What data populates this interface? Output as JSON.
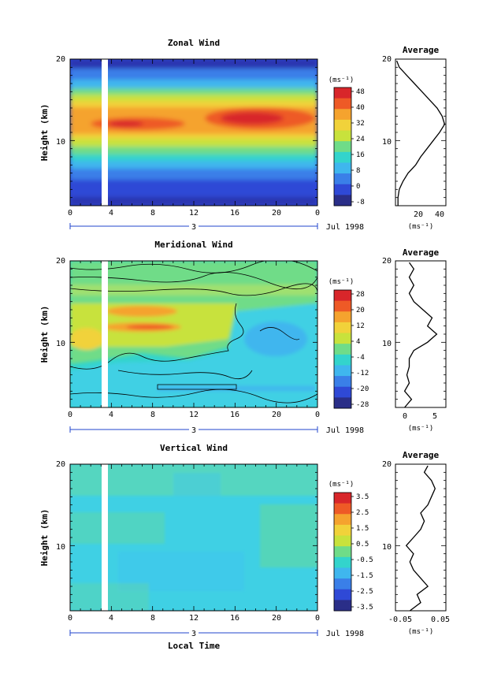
{
  "panels": [
    {
      "title": "Zonal Wind",
      "ylabel": "Height (km)",
      "yticks": [
        "20",
        "10"
      ],
      "xticks": [
        "0",
        "4",
        "8",
        "12",
        "16",
        "20",
        "0"
      ],
      "day_label": "3",
      "date_label": "Jul 1998",
      "cb_title": "(ms⁻¹)",
      "cb_labels": [
        "48",
        "40",
        "32",
        "24",
        "16",
        "8",
        "0",
        "-8"
      ],
      "avg_title": "Average",
      "avg_yticks": [
        "20",
        "10"
      ],
      "avg_xticks": [
        "20",
        "40"
      ],
      "avg_unit": "(ms⁻¹)",
      "gap_x": [
        3.0,
        3.5
      ]
    },
    {
      "title": "Meridional Wind",
      "ylabel": "Height (km)",
      "yticks": [
        "20",
        "10"
      ],
      "xticks": [
        "0",
        "4",
        "8",
        "12",
        "16",
        "20",
        "0"
      ],
      "day_label": "3",
      "date_label": "Jul 1998",
      "cb_title": "(ms⁻¹)",
      "cb_labels": [
        "28",
        "20",
        "12",
        "4",
        "-4",
        "-12",
        "-20",
        "-28"
      ],
      "avg_title": "Average",
      "avg_yticks": [
        "20",
        "10"
      ],
      "avg_xticks": [
        "0",
        "5"
      ],
      "avg_unit": "(ms⁻¹)",
      "gap_x": [
        3.0,
        3.5
      ]
    },
    {
      "title": "Vertical Wind",
      "ylabel": "Height (km)",
      "yticks": [
        "20",
        "10"
      ],
      "xticks": [
        "0",
        "4",
        "8",
        "12",
        "16",
        "20",
        "0"
      ],
      "day_label": "3",
      "date_label": "Jul 1998",
      "cb_title": "(ms⁻¹)",
      "cb_labels": [
        "3.5",
        "2.5",
        "1.5",
        "0.5",
        "-0.5",
        "-1.5",
        "-2.5",
        "-3.5"
      ],
      "avg_title": "Average",
      "avg_yticks": [
        "20",
        "10"
      ],
      "avg_xticks": [
        "-0.05",
        "0.05"
      ],
      "avg_unit": "(ms⁻¹)",
      "gap_x": [
        3.0,
        3.5
      ],
      "xlabel": "Local Time"
    }
  ],
  "chart_data": [
    {
      "type": "heatmap",
      "title": "Zonal Wind",
      "xlabel": "",
      "ylabel": "Height (km)",
      "xlim": [
        0,
        24
      ],
      "ylim": [
        2,
        20
      ],
      "clim": [
        -8,
        48
      ],
      "levels": [
        -8,
        0,
        8,
        16,
        24,
        32,
        40,
        48
      ],
      "colors": [
        "#2a2e88",
        "#2f49d6",
        "#3a7fe8",
        "#3fb6ee",
        "#33d4cc",
        "#6fdc88",
        "#c8e23c",
        "#f1d23a",
        "#f5a32e",
        "#ee5a26",
        "#d8262a"
      ],
      "profile": {
        "height": [
          2,
          3,
          4,
          5,
          6,
          7,
          8,
          9,
          10,
          11,
          12,
          13,
          14,
          15,
          16,
          17,
          18,
          19,
          19.8
        ],
        "value": [
          7,
          7,
          8,
          11,
          15,
          21,
          25,
          30,
          35,
          40,
          44,
          42,
          38,
          32,
          26,
          20,
          14,
          8,
          6
        ]
      }
    },
    {
      "type": "heatmap",
      "title": "Meridional Wind",
      "xlabel": "",
      "ylabel": "Height (km)",
      "xlim": [
        0,
        24
      ],
      "ylim": [
        2,
        20
      ],
      "clim": [
        -28,
        28
      ],
      "levels": [
        -28,
        -20,
        -12,
        -4,
        4,
        12,
        20,
        28
      ],
      "colors": [
        "#2a2e88",
        "#2f49d6",
        "#3a7fe8",
        "#3fb6ee",
        "#33d4cc",
        "#6fdc88",
        "#c8e23c",
        "#f1d23a",
        "#f5a32e",
        "#ee5a26",
        "#d8262a"
      ],
      "profile": {
        "height": [
          2,
          3,
          4,
          5,
          6,
          7,
          8,
          9,
          10,
          11,
          12,
          13,
          14,
          15,
          16,
          17,
          18,
          19,
          19.8
        ],
        "value": [
          -1,
          0.5,
          -1,
          0,
          -0.5,
          0,
          0,
          1,
          4,
          6,
          4,
          5,
          3,
          1,
          0,
          1,
          0,
          1,
          0
        ]
      }
    },
    {
      "type": "heatmap",
      "title": "Vertical Wind",
      "xlabel": "Local Time",
      "ylabel": "Height (km)",
      "xlim": [
        0,
        24
      ],
      "ylim": [
        2,
        20
      ],
      "clim": [
        -3.5,
        3.5
      ],
      "levels": [
        -3.5,
        -2.5,
        -1.5,
        -0.5,
        0.5,
        1.5,
        2.5,
        3.5
      ],
      "colors": [
        "#2a2e88",
        "#2f49d6",
        "#3a7fe8",
        "#3fb6ee",
        "#33d4cc",
        "#6fdc88",
        "#c8e23c",
        "#f1d23a",
        "#f5a32e",
        "#ee5a26",
        "#d8262a"
      ],
      "profile": {
        "height": [
          2,
          3,
          4,
          5,
          6,
          7,
          8,
          9,
          10,
          11,
          12,
          13,
          14,
          15,
          16,
          17,
          18,
          19,
          19.8
        ],
        "value": [
          -0.03,
          0,
          -0.01,
          0.02,
          0,
          -0.02,
          -0.03,
          -0.02,
          -0.04,
          -0.02,
          0,
          0.01,
          0,
          0.02,
          0.03,
          0.04,
          0.03,
          0.01,
          0.02
        ]
      }
    }
  ]
}
